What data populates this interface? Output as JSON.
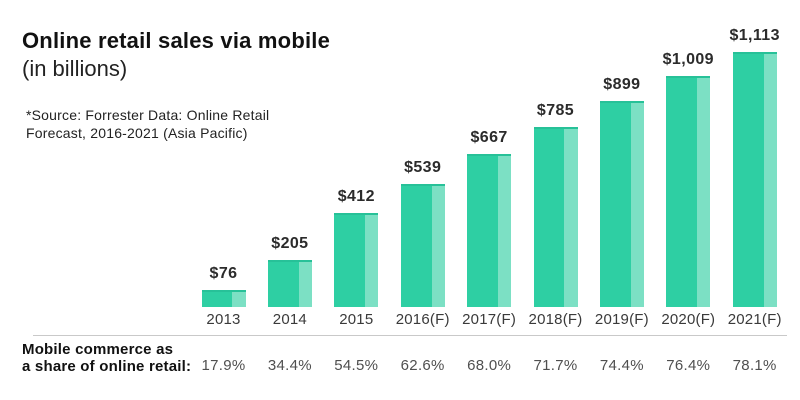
{
  "chart_data": {
    "type": "bar",
    "title": "Online retail sales via mobile",
    "subtitle": "(in billions)",
    "source_lines": [
      "*Source: Forrester Data: Online Retail",
      "Forecast, 2016-2021 (Asia Pacific)"
    ],
    "categories": [
      "2013",
      "2014",
      "2015",
      "2016(F)",
      "2017(F)",
      "2018(F)",
      "2019(F)",
      "2020(F)",
      "2021(F)"
    ],
    "values": [
      76,
      205,
      412,
      539,
      667,
      785,
      899,
      1009,
      1113
    ],
    "value_labels": [
      "$76",
      "$205",
      "$412",
      "$539",
      "$667",
      "$785",
      "$899",
      "$1,009",
      "$1,113"
    ],
    "share_label_lines": [
      "Mobile commerce as",
      "a share of online retail:"
    ],
    "share_values": [
      "17.9%",
      "34.4%",
      "54.5%",
      "62.6%",
      "68.0%",
      "71.7%",
      "74.4%",
      "76.4%",
      "78.1%"
    ],
    "ylim": [
      0,
      1150
    ],
    "grid": false,
    "legend": "none",
    "colors": {
      "bar": "#2ecfa3",
      "bar_light": "#7ce0c4",
      "bar_cap": "#27c198",
      "divider": "#c9c9c9",
      "text": "#1d1d1d"
    }
  }
}
